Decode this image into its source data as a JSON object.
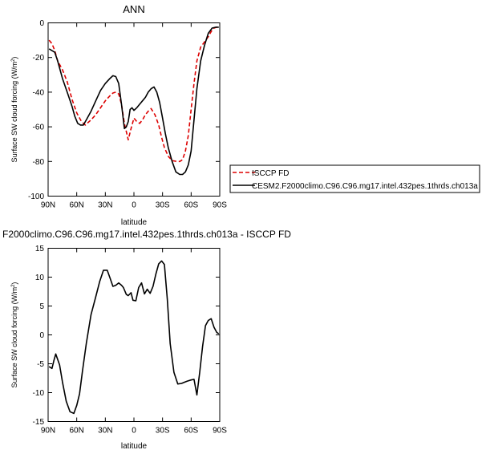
{
  "chart_data": [
    {
      "type": "line",
      "title": "ANN",
      "xlabel": "latitude",
      "ylabel": "Surface SW cloud forcing (W/m²)",
      "ylabel_main": "Surface SW cloud forcing (W/m",
      "ylabel_sup": "2",
      "ylabel_end": ")",
      "xlim": [
        90,
        -90
      ],
      "ylim": [
        -100,
        0
      ],
      "xticks": [
        90,
        60,
        30,
        0,
        -30,
        -60,
        -90
      ],
      "xtick_labels": [
        "90N",
        "60N",
        "30N",
        "0",
        "30S",
        "60S",
        "90S"
      ],
      "yticks": [
        0,
        -20,
        -40,
        -60,
        -80,
        -100
      ],
      "ytick_labels": [
        "0",
        "-20",
        "-40",
        "-60",
        "-80",
        "-100"
      ],
      "legend_position": "right",
      "series": [
        {
          "name": "ISCCP FD",
          "color": "#dd0000",
          "dash": "dashed",
          "x": [
            89,
            86,
            83,
            80,
            75,
            70,
            65,
            60,
            55,
            51,
            48,
            45,
            40,
            35,
            30,
            25,
            22,
            19,
            16,
            13,
            10,
            6,
            3,
            0,
            -3,
            -6,
            -9,
            -12,
            -15,
            -18,
            -22,
            -26,
            -29,
            -32,
            -36,
            -40,
            -45,
            -48,
            -51,
            -54,
            -57,
            -60,
            -63,
            -66,
            -70,
            -74,
            -78,
            -81,
            -84,
            -87,
            -89
          ],
          "y": [
            -10,
            -12,
            -16,
            -22,
            -27,
            -34,
            -44,
            -52,
            -57,
            -59,
            -57.5,
            -56,
            -53,
            -49,
            -45,
            -42,
            -40.5,
            -40,
            -41,
            -47,
            -58,
            -67.5,
            -61,
            -55,
            -57,
            -58,
            -56,
            -53,
            -51,
            -49.5,
            -53,
            -59,
            -66,
            -72,
            -77,
            -79.5,
            -80,
            -80,
            -79,
            -74,
            -65,
            -50,
            -35,
            -22,
            -14,
            -11,
            -8,
            -5,
            -3,
            -2.5,
            -2.5
          ]
        },
        {
          "name": "CESM2.F2000climo.C96.C96.mg17.intel.432pes.1thrds.ch013a",
          "color": "#000000",
          "dash": "solid",
          "x": [
            89,
            86,
            83,
            80,
            75,
            70,
            65,
            62,
            59,
            56,
            53,
            50,
            45,
            40,
            35,
            30,
            25,
            22,
            19,
            16,
            13,
            10,
            8,
            6,
            4,
            2,
            0,
            -3,
            -6,
            -9,
            -12,
            -15,
            -18,
            -21,
            -24,
            -27,
            -30,
            -33,
            -36,
            -40,
            -44,
            -48,
            -51,
            -54,
            -57,
            -60,
            -63,
            -66,
            -70,
            -74,
            -78,
            -82,
            -86,
            -89
          ],
          "y": [
            -15,
            -16,
            -17,
            -22,
            -32,
            -40,
            -48,
            -54,
            -58,
            -59,
            -59,
            -56,
            -51,
            -45,
            -39,
            -35,
            -32,
            -30.5,
            -31,
            -35,
            -47,
            -61,
            -60,
            -57,
            -50,
            -49,
            -50.5,
            -49,
            -47,
            -45,
            -43,
            -40,
            -38,
            -37,
            -40,
            -46,
            -55,
            -64,
            -72,
            -80,
            -86,
            -87.5,
            -87.5,
            -86,
            -82,
            -74,
            -56,
            -38,
            -22,
            -13,
            -6,
            -3,
            -2.5,
            -2.5
          ]
        }
      ]
    },
    {
      "type": "line",
      "title": "F2000climo.C96.C96.mg17.intel.432pes.1thrds.ch013a - ISCCP FD",
      "xlabel": "latitude",
      "ylabel": "Surface SW cloud forcing (W/m²)",
      "ylabel_main": "Surface SW cloud forcing (W/m",
      "ylabel_sup": "2",
      "ylabel_end": ")",
      "xlim": [
        90,
        -90
      ],
      "ylim": [
        -15,
        15
      ],
      "xticks": [
        90,
        60,
        30,
        0,
        -30,
        -60,
        -90
      ],
      "xtick_labels": [
        "90N",
        "60N",
        "30N",
        "0",
        "30S",
        "60S",
        "90S"
      ],
      "yticks": [
        15,
        10,
        5,
        0,
        -5,
        -10,
        -15
      ],
      "ytick_labels": [
        "15",
        "10",
        "5",
        "0",
        "-5",
        "-10",
        "-15"
      ],
      "series": [
        {
          "color": "#000000",
          "dash": "solid",
          "x": [
            89,
            86,
            84,
            82,
            78,
            75,
            71,
            67,
            63,
            60,
            57,
            54,
            50,
            45,
            40,
            36,
            32,
            28,
            25,
            22,
            19,
            16,
            13,
            11,
            8,
            6,
            3,
            1,
            -2,
            -5,
            -8,
            -11,
            -14,
            -17,
            -20,
            -23,
            -26,
            -29,
            -32,
            -35,
            -38,
            -42,
            -46,
            -50,
            -53,
            -56,
            -60,
            -63,
            -66,
            -69,
            -72,
            -75,
            -78,
            -81,
            -84,
            -87,
            -89
          ],
          "y": [
            -5.5,
            -5.8,
            -4.5,
            -3.3,
            -5.2,
            -8.1,
            -11.5,
            -13.3,
            -13.6,
            -12.2,
            -10.2,
            -6.3,
            -1.5,
            3.5,
            6.6,
            9.2,
            11.2,
            11.2,
            9.8,
            8.4,
            8.6,
            9.0,
            8.6,
            8.2,
            7.0,
            6.8,
            7.3,
            6.0,
            5.9,
            8.2,
            9.0,
            7.1,
            7.9,
            7.2,
            8.4,
            10.5,
            12.3,
            12.8,
            12.2,
            6.2,
            -1.5,
            -6.5,
            -8.5,
            -8.4,
            -8.2,
            -8.0,
            -7.8,
            -7.7,
            -10.4,
            -6.5,
            -2.0,
            1.6,
            2.5,
            2.8,
            1.3,
            0.4,
            0.2
          ]
        }
      ]
    }
  ]
}
